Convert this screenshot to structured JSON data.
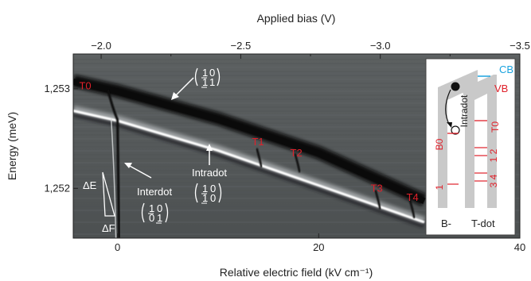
{
  "chart_data": {
    "type": "heatmap",
    "top_axis": {
      "label": "Applied bias (V)",
      "ticks": [
        -2.0,
        -2.5,
        -3.0,
        -3.5
      ],
      "tick_labels": [
        "−2.0",
        "−2.5",
        "−3.0",
        "−3.5"
      ],
      "range": [
        -1.9,
        -3.5
      ]
    },
    "bottom_axis": {
      "label": "Relative electric field (kV cm⁻¹)",
      "ticks": [
        0,
        20,
        40
      ],
      "tick_labels": [
        "0",
        "20",
        "40"
      ],
      "range": [
        -4.4,
        40
      ]
    },
    "left_axis": {
      "label": "Energy (meV)",
      "ticks": [
        1253,
        1252
      ],
      "tick_labels": [
        "1,253",
        "1,252"
      ],
      "range": [
        1251.5,
        1253.35
      ]
    },
    "bright_branch": [
      {
        "x": -4.4,
        "y": 1252.78
      },
      {
        "x": 0,
        "y": 1252.68
      },
      {
        "x": 10,
        "y": 1252.38
      },
      {
        "x": 20,
        "y": 1252.03
      },
      {
        "x": 30.5,
        "y": 1251.66
      }
    ],
    "dark_branch": [
      {
        "x": -4.4,
        "y": 1253.08
      },
      {
        "x": 0,
        "y": 1252.98
      },
      {
        "x": 10,
        "y": 1252.7
      },
      {
        "x": 20,
        "y": 1252.36
      },
      {
        "x": 30.5,
        "y": 1251.88
      }
    ],
    "peaks": [
      {
        "label": "T0",
        "x": -2.7,
        "y": 1252.98
      },
      {
        "label": "T1",
        "x": 14.0,
        "y": 1252.37
      },
      {
        "label": "T2",
        "x": 17.8,
        "y": 1252.32
      },
      {
        "label": "T3",
        "x": 25.8,
        "y": 1251.95
      },
      {
        "label": "T4",
        "x": 29.2,
        "y": 1251.86
      }
    ],
    "annotations": {
      "interdot": "Interdot",
      "intradot": "Intradot",
      "delta_e": "ΔE",
      "delta_f": "ΔF",
      "matrix_top": [
        "1",
        "0",
        "1",
        "1"
      ],
      "matrix_intradot": [
        "1",
        "0",
        "1",
        "0"
      ],
      "matrix_interdot": [
        "1",
        "0",
        "0",
        "1"
      ]
    },
    "inset": {
      "cb": "CB",
      "vb": "VB",
      "intradot": "Intradot",
      "t0": "T0",
      "b0": "B0",
      "level_1": "1",
      "level_2": "2",
      "level_12": "1 2",
      "level_34": "3 4",
      "b_minus": "B-",
      "t_dot": "T-dot"
    },
    "colors": {
      "background": "#55595a",
      "bright": "#ffffff",
      "dark": "#0a0a0a",
      "peak": "#e0202a",
      "cb": "#1aa3df",
      "vb": "#e0202a"
    }
  }
}
